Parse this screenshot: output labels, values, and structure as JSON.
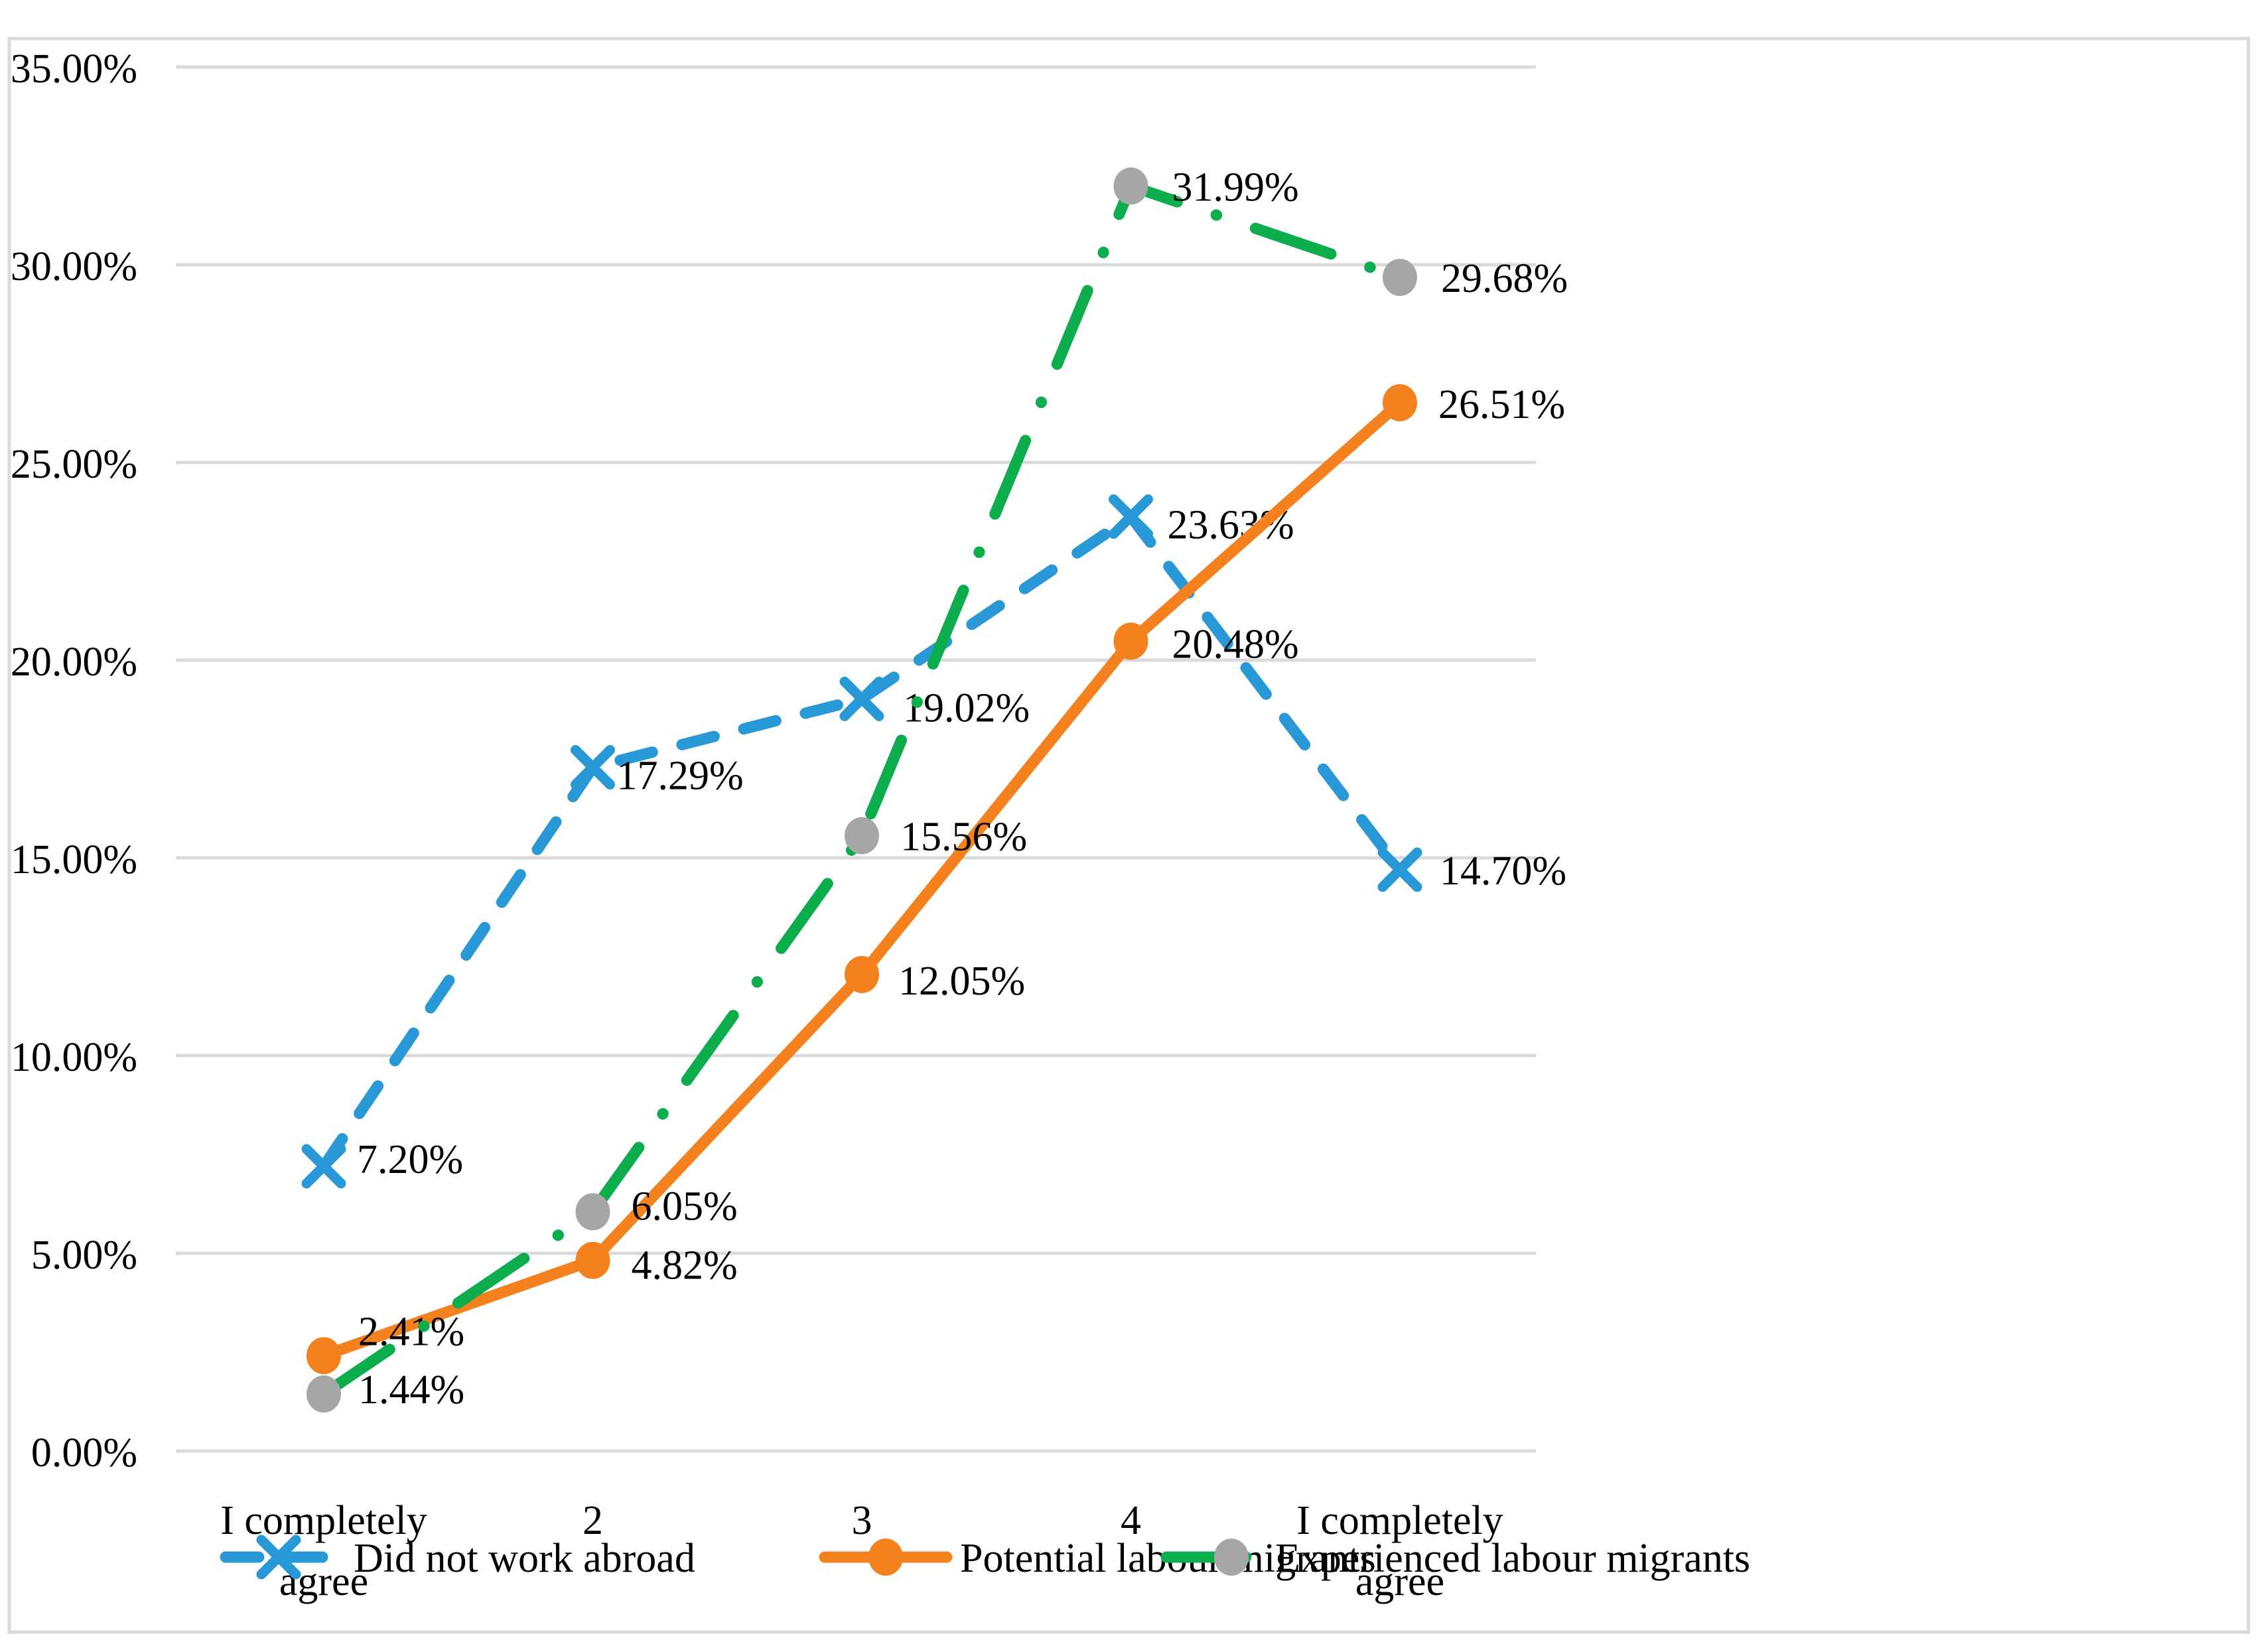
{
  "chart_data": {
    "type": "line",
    "title": "",
    "xlabel": "",
    "ylabel": "",
    "grid": true,
    "legend_position": "bottom",
    "categories": [
      "I completely agree",
      "2",
      "3",
      "4",
      "I completely agree"
    ],
    "y_axis": {
      "min": 0,
      "max": 35,
      "step": 5,
      "tick_labels": [
        "0.00%",
        "5.00%",
        "10.00%",
        "15.00%",
        "20.00%",
        "25.00%",
        "30.00%",
        "35.00%"
      ]
    },
    "series": [
      {
        "name": "Did not work abroad",
        "color": "#2899D6",
        "line_style": "dashed",
        "marker": "x",
        "marker_color": "#2899D6",
        "values": [
          7.2,
          17.29,
          19.02,
          23.63,
          14.7
        ],
        "data_labels": [
          "7.20%",
          "17.29%",
          "19.02%",
          "23.63%",
          "14.70%"
        ]
      },
      {
        "name": "Potential labour migrants",
        "color": "#F5801E",
        "line_style": "solid",
        "marker": "circle",
        "marker_color": "#F5801E",
        "values": [
          2.41,
          4.82,
          12.05,
          20.48,
          26.51
        ],
        "data_labels": [
          "2.41%",
          "4.82%",
          "12.05%",
          "20.48%",
          "26.51%"
        ]
      },
      {
        "name": "Experienced labour migrants",
        "color": "#0CAD4D",
        "line_style": "dash-dot",
        "marker": "circle",
        "marker_color": "#A6A6A6",
        "values": [
          1.44,
          6.05,
          15.56,
          31.99,
          29.68
        ],
        "data_labels": [
          "1.44%",
          "6.05%",
          "15.56%",
          "31.99%",
          "29.68%"
        ]
      }
    ]
  },
  "colors": {
    "background": "#FFFFFF",
    "gridline": "#D9D9D9",
    "border": "#D9D9D9",
    "text": "#000000"
  }
}
